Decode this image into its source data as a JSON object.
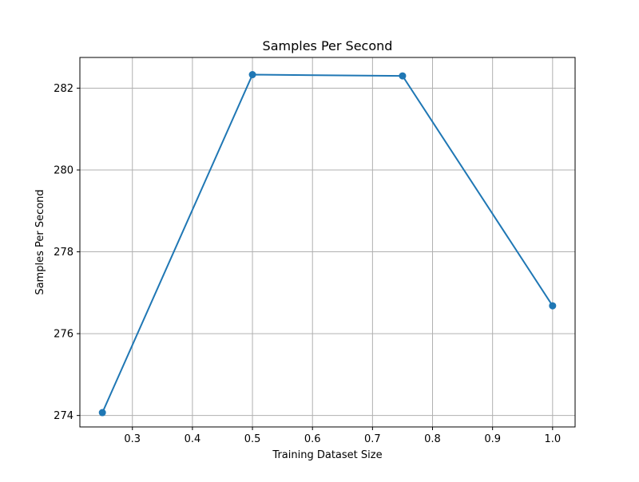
{
  "chart_data": {
    "type": "line",
    "title": "Samples Per Second",
    "xlabel": "Training Dataset Size",
    "ylabel": "Samples Per Second",
    "xlim": [
      0.2125,
      1.0375
    ],
    "ylim": [
      273.72,
      282.75
    ],
    "xticks": [
      0.3,
      0.4,
      0.5,
      0.6,
      0.7,
      0.8,
      0.9,
      1.0
    ],
    "xtick_labels": [
      "0.3",
      "0.4",
      "0.5",
      "0.6",
      "0.7",
      "0.8",
      "0.9",
      "1.0"
    ],
    "yticks": [
      274,
      276,
      278,
      280,
      282
    ],
    "ytick_labels": [
      "274",
      "276",
      "278",
      "280",
      "282"
    ],
    "grid": true,
    "series": [
      {
        "color": "#1f77b4",
        "marker": "circle",
        "x": [
          0.25,
          0.5,
          0.75,
          1.0
        ],
        "y": [
          274.07,
          282.33,
          282.3,
          276.68
        ]
      }
    ]
  }
}
